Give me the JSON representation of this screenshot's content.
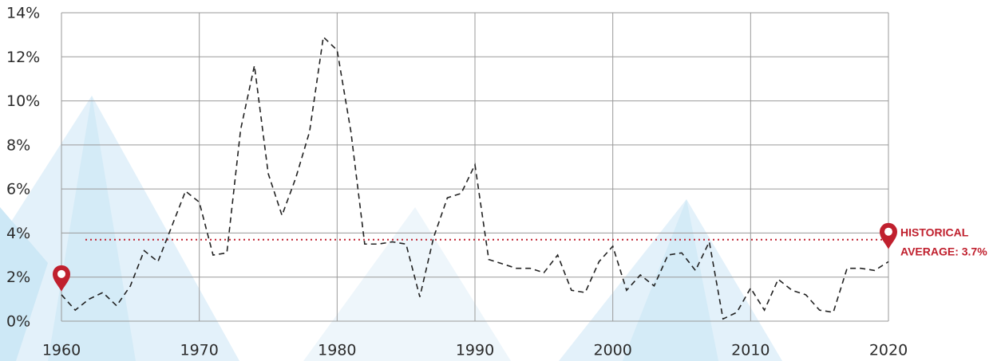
{
  "chart_data": {
    "type": "line",
    "x": [
      1960,
      1961,
      1962,
      1963,
      1964,
      1965,
      1966,
      1967,
      1968,
      1969,
      1970,
      1971,
      1972,
      1973,
      1974,
      1975,
      1976,
      1977,
      1978,
      1979,
      1980,
      1981,
      1982,
      1983,
      1984,
      1985,
      1986,
      1987,
      1988,
      1989,
      1990,
      1991,
      1992,
      1993,
      1994,
      1995,
      1996,
      1997,
      1998,
      1999,
      2000,
      2001,
      2002,
      2003,
      2004,
      2005,
      2006,
      2007,
      2008,
      2009,
      2010,
      2011,
      2012,
      2013,
      2014,
      2015,
      2016,
      2017,
      2018,
      2019,
      2020
    ],
    "series": [
      {
        "color": "#222222",
        "values": [
          1.2,
          0.5,
          1.0,
          1.3,
          0.7,
          1.6,
          3.2,
          2.7,
          4.3,
          5.9,
          5.4,
          3.0,
          3.1,
          8.7,
          11.6,
          6.7,
          4.8,
          6.5,
          8.6,
          12.9,
          12.3,
          8.6,
          3.5,
          3.5,
          3.6,
          3.5,
          1.1,
          3.8,
          5.6,
          5.8,
          7.1,
          2.8,
          2.6,
          2.4,
          2.4,
          2.2,
          3.0,
          1.4,
          1.3,
          2.7,
          3.4,
          1.4,
          2.1,
          1.6,
          3.0,
          3.1,
          2.3,
          3.6,
          0.1,
          0.4,
          1.5,
          0.5,
          1.9,
          1.4,
          1.2,
          0.5,
          0.4,
          2.4,
          2.4,
          2.3,
          2.7
        ]
      }
    ],
    "average": {
      "value": 3.7,
      "color": "#c0202e",
      "label": [
        "HISTORICAL",
        "AVERAGE: 3.7%"
      ]
    },
    "xlim": [
      1960,
      2020
    ],
    "xticks": [
      1960,
      1970,
      1980,
      1990,
      2000,
      2010,
      2020
    ],
    "ylim": [
      0,
      14
    ],
    "yticks": [
      {
        "value": 0,
        "label": "0%"
      },
      {
        "value": 2,
        "label": "2%"
      },
      {
        "value": 4,
        "label": "4%"
      },
      {
        "value": 6,
        "label": "6%"
      },
      {
        "value": 8,
        "label": "8%"
      },
      {
        "value": 10,
        "label": "10%"
      },
      {
        "value": 12,
        "label": "12%"
      },
      {
        "value": 14,
        "label": "14%"
      }
    ],
    "grid": true
  }
}
